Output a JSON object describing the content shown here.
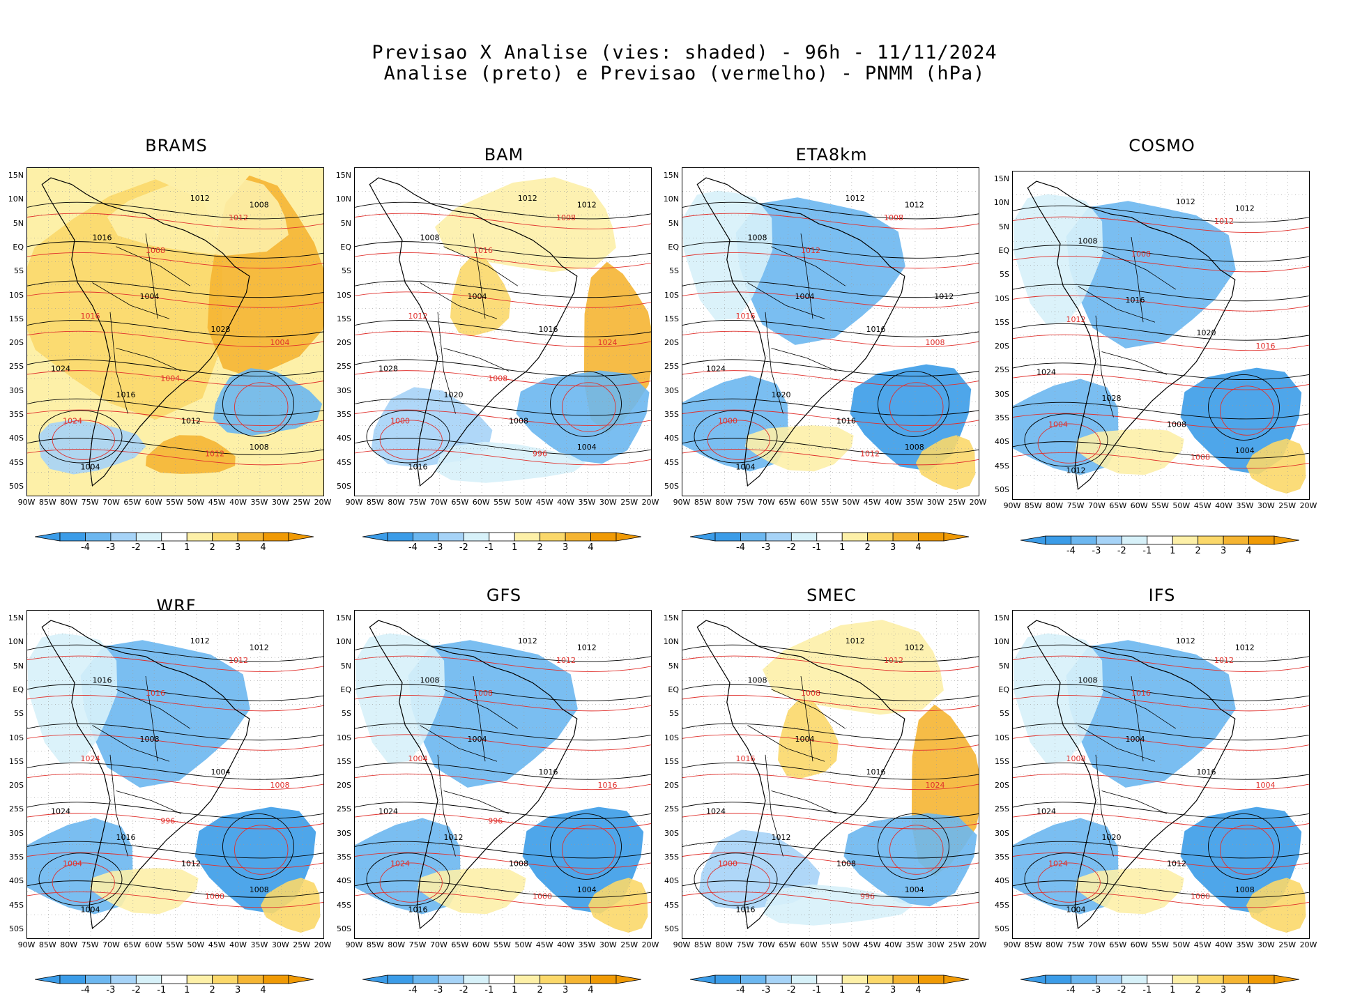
{
  "title": {
    "line1": "Previsao X Analise (vies: shaded) - 96h - 11/11/2024",
    "line2": "Analise (preto) e Previsao (vermelho) - PNMM (hPa)"
  },
  "panels": [
    {
      "name": "BRAMS",
      "tone": "warm",
      "labels": [
        "1012",
        "1008",
        "1016",
        "1004",
        "1028",
        "1024",
        "1016",
        "1012",
        "1008",
        "1004"
      ],
      "red_labels": [
        "1012",
        "1008",
        "1016",
        "1004",
        "1024",
        "1012",
        "1004"
      ]
    },
    {
      "name": "BAM",
      "tone": "mixed",
      "labels": [
        "1012",
        "1012",
        "1008",
        "1004",
        "1016",
        "1028",
        "1020",
        "1008",
        "1004",
        "1016"
      ],
      "red_labels": [
        "1008",
        "1016",
        "1012",
        "1024",
        "1000",
        "996",
        "1008"
      ]
    },
    {
      "name": "ETA8km",
      "tone": "cool",
      "labels": [
        "1012",
        "1012",
        "1008",
        "1004",
        "1016",
        "1024",
        "1020",
        "1016",
        "1008",
        "1004",
        "1012"
      ],
      "red_labels": [
        "1008",
        "1012",
        "1016",
        "1008",
        "1000",
        "1012"
      ]
    },
    {
      "name": "COSMO",
      "tone": "cool",
      "labels": [
        "1012",
        "1012",
        "1008",
        "1016",
        "1020",
        "1024",
        "1028",
        "1008",
        "1004",
        "1012"
      ],
      "red_labels": [
        "1012",
        "1008",
        "1012",
        "1016",
        "1004",
        "1008"
      ]
    },
    {
      "name": "WRF",
      "tone": "cool",
      "labels": [
        "1012",
        "1012",
        "1016",
        "1008",
        "1004",
        "1024",
        "1016",
        "1012",
        "1008",
        "1004"
      ],
      "red_labels": [
        "1012",
        "1016",
        "1024",
        "1008",
        "1004",
        "1000",
        "996"
      ]
    },
    {
      "name": "GFS",
      "tone": "cool",
      "labels": [
        "1012",
        "1012",
        "1008",
        "1004",
        "1016",
        "1024",
        "1012",
        "1008",
        "1004",
        "1016"
      ],
      "red_labels": [
        "1012",
        "1008",
        "1004",
        "1016",
        "1024",
        "1000",
        "996"
      ]
    },
    {
      "name": "SMEC",
      "tone": "mixed",
      "labels": [
        "1012",
        "1012",
        "1008",
        "1004",
        "1016",
        "1024",
        "1012",
        "1008",
        "1004",
        "1016"
      ],
      "red_labels": [
        "1012",
        "1008",
        "1016",
        "1024",
        "1000",
        "996"
      ]
    },
    {
      "name": "IFS",
      "tone": "cool",
      "labels": [
        "1012",
        "1012",
        "1008",
        "1004",
        "1016",
        "1024",
        "1020",
        "1012",
        "1008",
        "1004"
      ],
      "red_labels": [
        "1012",
        "1016",
        "1008",
        "1004",
        "1024",
        "1000"
      ]
    }
  ],
  "axes": {
    "y_ticks": [
      "15N",
      "10N",
      "5N",
      "EQ",
      "5S",
      "10S",
      "15S",
      "20S",
      "25S",
      "30S",
      "35S",
      "40S",
      "45S",
      "50S"
    ],
    "x_ticks": [
      "90W",
      "85W",
      "80W",
      "75W",
      "70W",
      "65W",
      "60W",
      "55W",
      "50W",
      "45W",
      "40W",
      "35W",
      "30W",
      "25W",
      "20W"
    ]
  },
  "colorbar": {
    "labels": [
      "-4",
      "-3",
      "-2",
      "-1",
      "1",
      "2",
      "3",
      "4"
    ],
    "colors": [
      "#3b9ce8",
      "#6cb7f0",
      "#a6d3f7",
      "#d7f1f9",
      "#ffffff",
      "#fdf0a8",
      "#fbd86a",
      "#f5b533",
      "#f09a05"
    ]
  },
  "colors": {
    "analysis": "#000000",
    "forecast": "#e0302c",
    "warm_bias": "#f7c550",
    "cool_bias": "#5ab0ef"
  }
}
